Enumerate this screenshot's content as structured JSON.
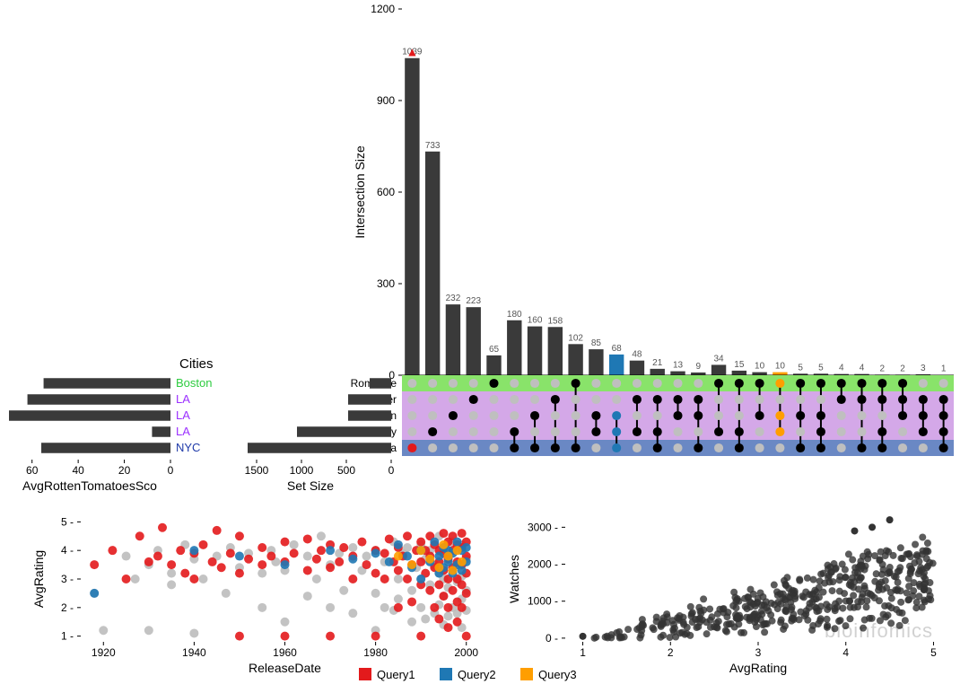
{
  "colors": {
    "bar": "#3a3a3a",
    "text": "#000000",
    "grid": "#cccccc",
    "query1": "#e31a1c",
    "query2": "#1f78b4",
    "query3": "#ff9e00",
    "scatter_grey": "#bdbdbd",
    "scatter_dark": "#333333",
    "row_green": "#89e36a",
    "row_purple": "#d4a8e8",
    "row_blue": "#6a88c4",
    "dot_off": "#bfbfbf",
    "dot_on": "#000000",
    "city_boston": "#2ecc40",
    "city_la": "#9b30ff",
    "city_nyc": "#1f3aa9"
  },
  "intersection_chart": {
    "ylabel": "Intersection Size",
    "ylim": [
      0,
      1200
    ],
    "yticks": [
      0,
      300,
      600,
      900,
      1200
    ],
    "categories": [
      "Romance",
      "Thriller",
      "Action",
      "Comedy",
      "Drama"
    ],
    "row_colors": [
      "row_green",
      "row_purple",
      "row_purple",
      "row_purple",
      "row_blue"
    ],
    "bars": [
      {
        "v": 1039,
        "color": "bar",
        "marker": "▲",
        "marker_color": "query1",
        "dots": [
          5
        ],
        "dot_colors": {
          "5": "query1"
        }
      },
      {
        "v": 733,
        "color": "bar",
        "dots": [
          4
        ]
      },
      {
        "v": 232,
        "color": "bar",
        "dots": [
          3
        ]
      },
      {
        "v": 223,
        "color": "bar",
        "dots": [
          2
        ]
      },
      {
        "v": 65,
        "color": "bar",
        "dots": [
          1
        ]
      },
      {
        "v": 180,
        "color": "bar",
        "dots": [
          4,
          5
        ]
      },
      {
        "v": 160,
        "color": "bar",
        "dots": [
          3,
          5
        ]
      },
      {
        "v": 158,
        "color": "bar",
        "dots": [
          2,
          5
        ]
      },
      {
        "v": 102,
        "color": "bar",
        "dots": [
          1,
          5
        ]
      },
      {
        "v": 85,
        "color": "bar",
        "dots": [
          3,
          4
        ]
      },
      {
        "v": 68,
        "color": "query2",
        "dots": [
          3,
          4,
          5
        ],
        "dot_colors": {
          "3": "query2",
          "4": "query2",
          "5": "query2"
        }
      },
      {
        "v": 48,
        "color": "bar",
        "dots": [
          2,
          4
        ]
      },
      {
        "v": 21,
        "color": "bar",
        "dots": [
          2,
          4,
          5
        ]
      },
      {
        "v": 13,
        "color": "bar",
        "dots": [
          2,
          3
        ]
      },
      {
        "v": 9,
        "color": "bar",
        "dots": [
          2,
          3,
          5
        ]
      },
      {
        "v": 34,
        "color": "bar",
        "dots": [
          1,
          4
        ]
      },
      {
        "v": 15,
        "color": "bar",
        "dots": [
          1,
          4,
          5
        ]
      },
      {
        "v": 10,
        "color": "bar",
        "dots": [
          1,
          3
        ]
      },
      {
        "v": 10,
        "color": "query3",
        "dots": [
          1,
          3,
          4
        ],
        "dot_colors": {
          "1": "query3",
          "3": "query3",
          "4": "query3"
        }
      },
      {
        "v": 5,
        "color": "bar",
        "dots": [
          1,
          3,
          5
        ]
      },
      {
        "v": 5,
        "color": "bar",
        "dots": [
          1,
          3,
          4,
          5
        ]
      },
      {
        "v": 4,
        "color": "bar",
        "dots": [
          1,
          2
        ]
      },
      {
        "v": 4,
        "color": "bar",
        "dots": [
          1,
          2,
          5
        ]
      },
      {
        "v": 2,
        "color": "bar",
        "dots": [
          1,
          2,
          4,
          5
        ]
      },
      {
        "v": 2,
        "color": "bar",
        "dots": [
          1,
          2,
          3
        ]
      },
      {
        "v": 3,
        "color": "bar",
        "dots": [
          2,
          3,
          4
        ]
      },
      {
        "v": 1,
        "color": "bar",
        "dots": [
          2,
          3,
          4,
          5
        ]
      }
    ]
  },
  "set_size_chart": {
    "xlabel": "Set Size",
    "xlim": [
      1800,
      0
    ],
    "xticks": [
      1500,
      1000,
      500,
      0
    ],
    "values": [
      240,
      480,
      480,
      1050,
      1600
    ]
  },
  "avg_rotten_chart": {
    "title": "Cities",
    "xlabel": "AvgRottenTomatoesSco",
    "xlim": [
      70,
      0
    ],
    "xticks": [
      60,
      40,
      20,
      0
    ],
    "rows": [
      {
        "label": "Boston",
        "label_color": "city_boston",
        "v": 55
      },
      {
        "label": "LA",
        "label_color": "city_la",
        "v": 62
      },
      {
        "label": "LA",
        "label_color": "city_la",
        "v": 70
      },
      {
        "label": "LA",
        "label_color": "city_la",
        "v": 8
      },
      {
        "label": "NYC",
        "label_color": "city_nyc",
        "v": 56
      }
    ]
  },
  "scatter_rating": {
    "xlabel": "ReleaseDate",
    "ylabel": "AvgRating",
    "xlim": [
      1915,
      2005
    ],
    "xticks": [
      1920,
      1940,
      1960,
      1980,
      2000
    ],
    "ylim": [
      0.8,
      5.2
    ],
    "yticks": [
      1,
      2,
      3,
      4,
      5
    ],
    "marker_size": 5,
    "points_grey": [
      [
        1918,
        2.5
      ],
      [
        1920,
        1.2
      ],
      [
        1925,
        3.8
      ],
      [
        1927,
        3.0
      ],
      [
        1930,
        3.5
      ],
      [
        1930,
        1.2
      ],
      [
        1932,
        4.0
      ],
      [
        1935,
        3.2
      ],
      [
        1935,
        2.8
      ],
      [
        1938,
        4.2
      ],
      [
        1940,
        3.7
      ],
      [
        1940,
        1.1
      ],
      [
        1942,
        3.0
      ],
      [
        1945,
        3.8
      ],
      [
        1947,
        2.5
      ],
      [
        1948,
        4.1
      ],
      [
        1950,
        3.4
      ],
      [
        1952,
        3.9
      ],
      [
        1955,
        3.2
      ],
      [
        1955,
        2.0
      ],
      [
        1957,
        4.0
      ],
      [
        1958,
        3.6
      ],
      [
        1960,
        3.3
      ],
      [
        1960,
        1.5
      ],
      [
        1962,
        4.2
      ],
      [
        1965,
        3.8
      ],
      [
        1965,
        2.4
      ],
      [
        1967,
        3.0
      ],
      [
        1968,
        4.5
      ],
      [
        1970,
        3.5
      ],
      [
        1970,
        2.0
      ],
      [
        1972,
        3.9
      ],
      [
        1973,
        2.6
      ],
      [
        1975,
        4.1
      ],
      [
        1975,
        1.8
      ],
      [
        1977,
        3.3
      ],
      [
        1978,
        3.8
      ],
      [
        1980,
        4.0
      ],
      [
        1980,
        2.5
      ],
      [
        1980,
        1.2
      ],
      [
        1982,
        3.6
      ],
      [
        1982,
        2.0
      ],
      [
        1984,
        4.3
      ],
      [
        1984,
        1.9
      ],
      [
        1985,
        3.0
      ],
      [
        1985,
        2.3
      ],
      [
        1986,
        3.9
      ],
      [
        1987,
        4.1
      ],
      [
        1988,
        2.6
      ],
      [
        1988,
        1.5
      ],
      [
        1989,
        3.4
      ],
      [
        1990,
        4.2
      ],
      [
        1990,
        3.0
      ],
      [
        1990,
        2.0
      ],
      [
        1991,
        3.7
      ],
      [
        1991,
        1.6
      ],
      [
        1992,
        4.0
      ],
      [
        1992,
        2.8
      ],
      [
        1993,
        3.5
      ],
      [
        1993,
        1.8
      ],
      [
        1994,
        4.5
      ],
      [
        1994,
        3.2
      ],
      [
        1994,
        2.1
      ],
      [
        1995,
        4.1
      ],
      [
        1995,
        3.0
      ],
      [
        1995,
        2.4
      ],
      [
        1995,
        1.4
      ],
      [
        1996,
        3.8
      ],
      [
        1996,
        2.7
      ],
      [
        1996,
        1.7
      ],
      [
        1997,
        4.3
      ],
      [
        1997,
        3.3
      ],
      [
        1997,
        2.0
      ],
      [
        1998,
        4.0
      ],
      [
        1998,
        2.9
      ],
      [
        1998,
        1.8
      ],
      [
        1999,
        4.2
      ],
      [
        1999,
        3.1
      ],
      [
        1999,
        2.3
      ],
      [
        1999,
        1.3
      ],
      [
        2000,
        3.7
      ],
      [
        2000,
        2.6
      ],
      [
        2000,
        1.9
      ]
    ],
    "points_red": [
      [
        1918,
        3.5
      ],
      [
        1922,
        4.0
      ],
      [
        1925,
        3.0
      ],
      [
        1928,
        4.5
      ],
      [
        1930,
        3.6
      ],
      [
        1932,
        3.8
      ],
      [
        1933,
        4.8
      ],
      [
        1935,
        3.5
      ],
      [
        1937,
        4.0
      ],
      [
        1938,
        3.2
      ],
      [
        1940,
        3.9
      ],
      [
        1940,
        3.0
      ],
      [
        1942,
        4.2
      ],
      [
        1944,
        3.6
      ],
      [
        1945,
        4.7
      ],
      [
        1946,
        3.4
      ],
      [
        1948,
        3.9
      ],
      [
        1950,
        4.5
      ],
      [
        1950,
        3.2
      ],
      [
        1950,
        1.0
      ],
      [
        1952,
        3.7
      ],
      [
        1955,
        4.1
      ],
      [
        1955,
        3.5
      ],
      [
        1957,
        3.8
      ],
      [
        1960,
        4.3
      ],
      [
        1960,
        3.6
      ],
      [
        1960,
        1.0
      ],
      [
        1962,
        3.9
      ],
      [
        1965,
        4.4
      ],
      [
        1965,
        3.3
      ],
      [
        1967,
        3.7
      ],
      [
        1968,
        4.0
      ],
      [
        1970,
        4.2
      ],
      [
        1970,
        3.4
      ],
      [
        1970,
        1.0
      ],
      [
        1972,
        3.6
      ],
      [
        1973,
        4.1
      ],
      [
        1975,
        3.8
      ],
      [
        1975,
        3.0
      ],
      [
        1977,
        4.3
      ],
      [
        1978,
        3.5
      ],
      [
        1980,
        4.0
      ],
      [
        1980,
        3.2
      ],
      [
        1980,
        1.0
      ],
      [
        1982,
        3.9
      ],
      [
        1982,
        3.0
      ],
      [
        1983,
        4.4
      ],
      [
        1984,
        3.6
      ],
      [
        1985,
        4.1
      ],
      [
        1985,
        3.3
      ],
      [
        1985,
        2.0
      ],
      [
        1986,
        3.8
      ],
      [
        1987,
        4.5
      ],
      [
        1987,
        3.0
      ],
      [
        1988,
        3.5
      ],
      [
        1988,
        2.2
      ],
      [
        1989,
        4.0
      ],
      [
        1990,
        4.3
      ],
      [
        1990,
        3.6
      ],
      [
        1990,
        2.8
      ],
      [
        1990,
        1.0
      ],
      [
        1991,
        4.0
      ],
      [
        1991,
        3.2
      ],
      [
        1992,
        4.5
      ],
      [
        1992,
        3.8
      ],
      [
        1992,
        2.6
      ],
      [
        1993,
        4.2
      ],
      [
        1993,
        3.4
      ],
      [
        1993,
        2.0
      ],
      [
        1994,
        4.0
      ],
      [
        1994,
        3.6
      ],
      [
        1994,
        2.8
      ],
      [
        1994,
        1.6
      ],
      [
        1995,
        4.6
      ],
      [
        1995,
        3.9
      ],
      [
        1995,
        3.3
      ],
      [
        1995,
        2.4
      ],
      [
        1996,
        4.3
      ],
      [
        1996,
        3.7
      ],
      [
        1996,
        3.0
      ],
      [
        1996,
        2.0
      ],
      [
        1996,
        1.3
      ],
      [
        1997,
        4.5
      ],
      [
        1997,
        4.0
      ],
      [
        1997,
        3.4
      ],
      [
        1997,
        2.6
      ],
      [
        1998,
        4.2
      ],
      [
        1998,
        3.6
      ],
      [
        1998,
        3.0
      ],
      [
        1998,
        2.2
      ],
      [
        1998,
        1.5
      ],
      [
        1999,
        4.6
      ],
      [
        1999,
        4.1
      ],
      [
        1999,
        3.5
      ],
      [
        1999,
        2.8
      ],
      [
        1999,
        2.0
      ],
      [
        2000,
        4.3
      ],
      [
        2000,
        3.8
      ],
      [
        2000,
        3.2
      ],
      [
        2000,
        2.5
      ],
      [
        2000,
        1.0
      ]
    ],
    "points_blue": [
      [
        1918,
        2.5
      ],
      [
        1940,
        4.0
      ],
      [
        1950,
        3.8
      ],
      [
        1960,
        3.5
      ],
      [
        1970,
        4.0
      ],
      [
        1975,
        3.7
      ],
      [
        1980,
        3.9
      ],
      [
        1983,
        3.6
      ],
      [
        1985,
        4.2
      ],
      [
        1987,
        3.8
      ],
      [
        1988,
        3.4
      ],
      [
        1990,
        4.0
      ],
      [
        1990,
        3.0
      ],
      [
        1992,
        3.6
      ],
      [
        1993,
        4.3
      ],
      [
        1994,
        3.8
      ],
      [
        1994,
        3.2
      ],
      [
        1995,
        4.1
      ],
      [
        1995,
        3.4
      ],
      [
        1996,
        4.0
      ],
      [
        1996,
        3.6
      ],
      [
        1997,
        3.9
      ],
      [
        1997,
        3.2
      ],
      [
        1998,
        4.3
      ],
      [
        1998,
        3.5
      ],
      [
        1999,
        4.0
      ],
      [
        1999,
        3.3
      ],
      [
        2000,
        4.1
      ],
      [
        2000,
        3.6
      ]
    ],
    "points_orange": [
      [
        1985,
        3.8
      ],
      [
        1988,
        3.5
      ],
      [
        1990,
        4.0
      ],
      [
        1992,
        3.7
      ],
      [
        1994,
        3.4
      ],
      [
        1995,
        4.2
      ],
      [
        1996,
        3.8
      ],
      [
        1997,
        3.3
      ],
      [
        1998,
        4.0
      ],
      [
        1999,
        3.6
      ]
    ]
  },
  "scatter_watches": {
    "xlabel": "AvgRating",
    "ylabel": "Watches",
    "xlim": [
      0.8,
      5.2
    ],
    "xticks": [
      1,
      2,
      3,
      4,
      5
    ],
    "ylim": [
      -100,
      3300
    ],
    "yticks": [
      0,
      1000,
      2000,
      3000
    ],
    "marker_size": 4,
    "n_points": 450,
    "seed": 17
  },
  "legend": {
    "items": [
      {
        "label": "Query1",
        "color": "query1"
      },
      {
        "label": "Query2",
        "color": "query2"
      },
      {
        "label": "Query3",
        "color": "query3"
      }
    ]
  },
  "watermark": "bioinfomics"
}
